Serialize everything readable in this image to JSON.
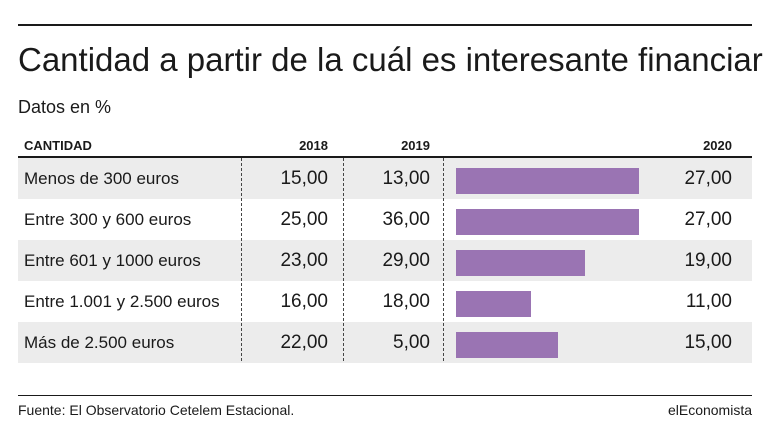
{
  "title": "Cantidad a partir de la cuál es interesante financiar",
  "subtitle": "Datos en %",
  "headers": {
    "label": "CANTIDAD",
    "y2018": "2018",
    "y2019": "2019",
    "y2020": "2020"
  },
  "rows": [
    {
      "label": "Menos de 300 euros",
      "v2018": "15,00",
      "v2019": "13,00",
      "v2020": "27,00"
    },
    {
      "label": "Entre 300 y 600 euros",
      "v2018": "25,00",
      "v2019": "36,00",
      "v2020": "27,00"
    },
    {
      "label": "Entre 601 y 1000 euros",
      "v2018": "23,00",
      "v2019": "29,00",
      "v2020": "19,00"
    },
    {
      "label": "Entre 1.001 y 2.500 euros",
      "v2018": "16,00",
      "v2019": "18,00",
      "v2020": "11,00"
    },
    {
      "label": "Más de 2.500 euros",
      "v2018": "22,00",
      "v2019": "5,00",
      "v2020": "15,00"
    }
  ],
  "source": "Fuente: El Observatorio Cetelem Estacional.",
  "brand": "elEconomista",
  "colors": {
    "bar": "#9a74b3",
    "row_alt": "#ececec"
  },
  "chart_data": {
    "type": "table",
    "columns": [
      "CANTIDAD",
      "2018",
      "2019",
      "2020"
    ],
    "categories": [
      "Menos de 300 euros",
      "Entre 300 y 600 euros",
      "Entre 601 y 1000 euros",
      "Entre 1.001 y 2.500 euros",
      "Más de 2.500 euros"
    ],
    "series": [
      {
        "name": "2018",
        "values": [
          15,
          25,
          23,
          16,
          22
        ]
      },
      {
        "name": "2019",
        "values": [
          13,
          36,
          29,
          18,
          5
        ]
      },
      {
        "name": "2020",
        "values": [
          27,
          27,
          19,
          11,
          15
        ]
      }
    ],
    "bar_series": "2020",
    "title": "Cantidad a partir de la cuál es interesante financiar",
    "subtitle": "Datos en %"
  }
}
